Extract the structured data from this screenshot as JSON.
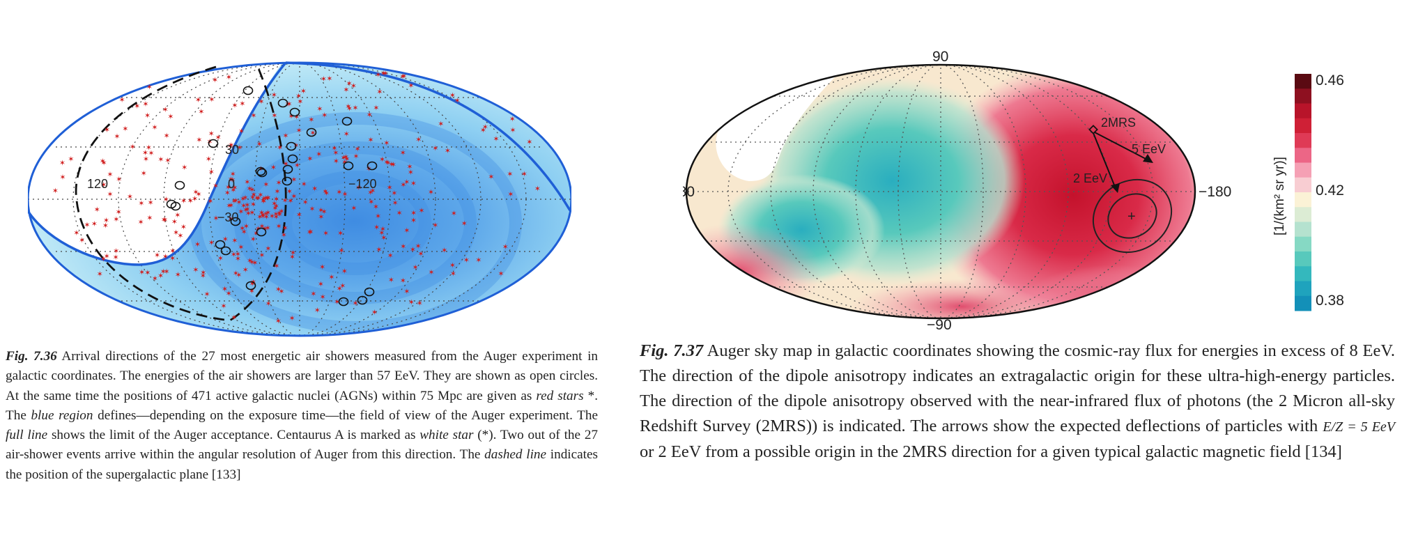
{
  "figure_736": {
    "lat_labels": [
      "30",
      "0",
      "−30"
    ],
    "lon_labels": [
      "120",
      "−120"
    ],
    "caption": {
      "label": "Fig. 7.36",
      "t1": " Arrival directions of the 27 most energetic air showers measured from the Auger experiment  in galactic coordinates. The energies of the air showers are larger than 57 EeV. They are shown as open circles. At the same time the positions of 471 active galactic nuclei (AGNs) within 75 Mpc are given as ",
      "i1": "red stars",
      "t2": " *. The ",
      "i2": "blue region",
      "t3": " defines—depending on the exposure time—the field of view of the Auger experiment. The ",
      "i3": "full line",
      "t4": " shows the limit of the Auger acceptance. Centaurus A is marked as ",
      "i4": "white star",
      "t5": " (*). Two out of the 27 air-shower events arrive within the angular resolution of Auger from this direction. The ",
      "i5": "dashed line",
      "t6": " indicates the position of the supergalactic plane [133]"
    },
    "colors": {
      "exposure_light": "#c9eef7",
      "exposure_dark": "#4f97e4",
      "acceptance_line": "#1f5fd6",
      "agn_star": "#d01c1c"
    }
  },
  "figure_737": {
    "labels": {
      "top": "90",
      "bottom": "−90",
      "left": "180",
      "right": "−180",
      "dipole": "2MRS",
      "e5": "5 EeV",
      "e2": "2 EeV"
    },
    "colorbar": {
      "max": "0.46",
      "mid": "0.42",
      "min": "0.38",
      "unit_label": "[1/(km² sr yr)]",
      "colors": [
        "#5a0a12",
        "#8e1020",
        "#b8142a",
        "#cf2036",
        "#df3a56",
        "#ec6686",
        "#f5a0b4",
        "#f8cdd2",
        "#fbf2d6",
        "#dcecd4",
        "#b5e2cf",
        "#86d9c4",
        "#58c9bc",
        "#34b8bd",
        "#1fa3bd",
        "#1390b8"
      ]
    },
    "caption": {
      "label": "Fig. 7.37",
      "t1": " Auger sky map in galactic coordinates showing the cosmic-ray flux for energies in excess of 8 EeV. The direction of the dipole anisotropy indicates an extragalactic origin for these ultra-high-energy particles. The direction of the dipole anisotropy observed with the near-infrared flux of photons (the 2 Micron all-sky Redshift Survey (2MRS)) is indicated. The arrows show the expected deflections of particles with ",
      "math": "E/Z = 5 EeV",
      "t2": " or 2 EeV from a possible origin in the 2MRS direction for a given typical galactic magnetic field [134]"
    }
  }
}
